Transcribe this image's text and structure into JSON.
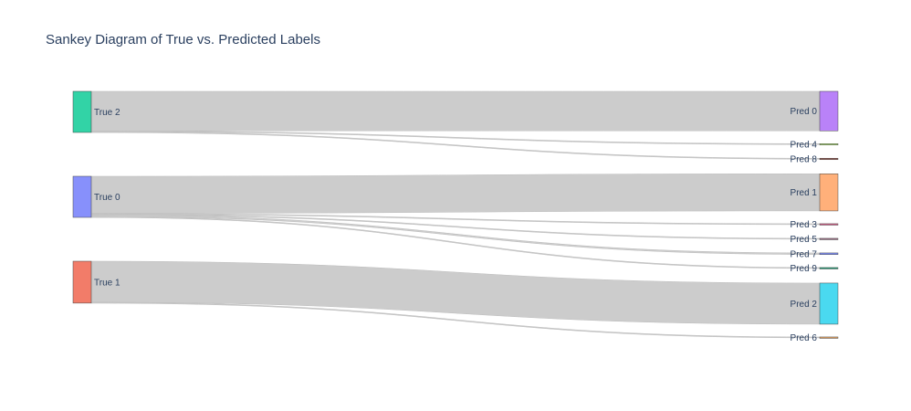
{
  "title": "Sankey Diagram of True vs. Predicted Labels",
  "chart_data": {
    "type": "sankey",
    "title": "Sankey Diagram of True vs. Predicted Labels",
    "link_color": "#cccccc",
    "node_border_color": "#444444",
    "source_nodes": [
      {
        "id": "true2",
        "label": "True 2",
        "color": "#32d3a6"
      },
      {
        "id": "true0",
        "label": "True 0",
        "color": "#8790fb"
      },
      {
        "id": "true1",
        "label": "True 1",
        "color": "#f27c69"
      }
    ],
    "target_nodes": [
      {
        "id": "pred0",
        "label": "Pred 0",
        "color": "#b982f8"
      },
      {
        "id": "pred4",
        "label": "Pred 4",
        "color": "#b6e880"
      },
      {
        "id": "pred8",
        "label": "Pred 8",
        "color": "#a15c53"
      },
      {
        "id": "pred1",
        "label": "Pred 1",
        "color": "#ffb07a"
      },
      {
        "id": "pred3",
        "label": "Pred 3",
        "color": "#d45a86"
      },
      {
        "id": "pred5",
        "label": "Pred 5",
        "color": "#9e6b84"
      },
      {
        "id": "pred7",
        "label": "Pred 7",
        "color": "#7d8dfa"
      },
      {
        "id": "pred9",
        "label": "Pred 9",
        "color": "#1f9e76"
      },
      {
        "id": "pred2",
        "label": "Pred 2",
        "color": "#4ad9f0"
      },
      {
        "id": "pred6",
        "label": "Pred 6",
        "color": "#e0a060"
      }
    ],
    "links": [
      {
        "source": "true2",
        "target": "pred0",
        "value": 50
      },
      {
        "source": "true2",
        "target": "pred4",
        "value": 1
      },
      {
        "source": "true2",
        "target": "pred8",
        "value": 1
      },
      {
        "source": "true0",
        "target": "pred1",
        "value": 47
      },
      {
        "source": "true0",
        "target": "pred3",
        "value": 1
      },
      {
        "source": "true0",
        "target": "pred5",
        "value": 1
      },
      {
        "source": "true0",
        "target": "pred7",
        "value": 2
      },
      {
        "source": "true0",
        "target": "pred9",
        "value": 1
      },
      {
        "source": "true1",
        "target": "pred2",
        "value": 52
      },
      {
        "source": "true1",
        "target": "pred6",
        "value": 1
      }
    ]
  }
}
